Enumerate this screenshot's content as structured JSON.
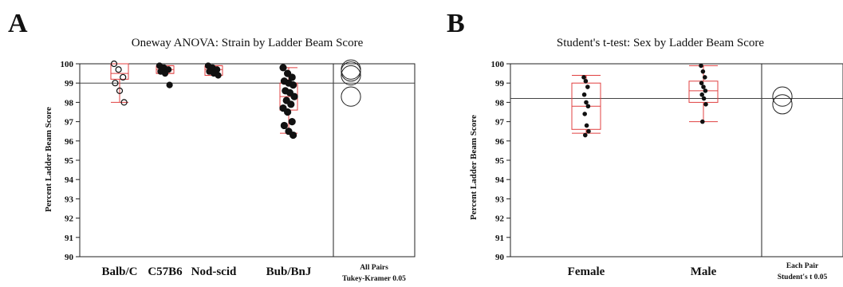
{
  "chart_data": [
    {
      "panel": "A",
      "type": "scatter",
      "title": "Oneway ANOVA: Strain by Ladder Beam Score",
      "ylabel": "Percent Ladder Beam Score",
      "ylim": [
        90,
        100
      ],
      "yticks": [
        "90",
        "91",
        "92",
        "93",
        "94",
        "95",
        "96",
        "97",
        "98",
        "99",
        "100"
      ],
      "grand_mean": 99.0,
      "categories": [
        "Balb/C",
        "C57B6",
        "Nod-scid",
        "Bub/BnJ"
      ],
      "comparison_label": [
        "All Pairs",
        "Tukey-Kramer 0.05"
      ],
      "groups": [
        {
          "name": "Balb/C",
          "box": {
            "q1": 99.2,
            "median": 99.5,
            "q3": 100.0,
            "lo": 98.0,
            "hi": 100.0
          },
          "points": [
            100.0,
            99.7,
            99.3,
            99.0,
            98.6,
            98.0
          ]
        },
        {
          "name": "C57B6",
          "box": {
            "q1": 99.5,
            "median": 99.7,
            "q3": 99.9,
            "lo": 99.5,
            "hi": 99.9
          },
          "points": [
            99.9,
            99.8,
            99.7,
            99.6,
            99.5,
            98.9
          ]
        },
        {
          "name": "Nod-scid",
          "box": {
            "q1": 99.4,
            "median": 99.7,
            "q3": 99.9,
            "lo": 99.4,
            "hi": 99.9
          },
          "points": [
            99.9,
            99.8,
            99.7,
            99.6,
            99.5,
            99.4
          ]
        },
        {
          "name": "Bub/BnJ",
          "box": {
            "q1": 97.6,
            "median": 98.3,
            "q3": 99.0,
            "lo": 96.4,
            "hi": 99.8
          },
          "points": [
            99.8,
            99.5,
            99.3,
            99.1,
            99.0,
            98.9,
            98.6,
            98.5,
            98.3,
            98.1,
            97.9,
            97.7,
            97.5,
            97.0,
            96.8,
            96.5,
            96.3
          ]
        }
      ],
      "comparison_circles": [
        {
          "center": 99.7,
          "radius": 0.5
        },
        {
          "center": 99.6,
          "radius": 0.5
        },
        {
          "center": 99.4,
          "radius": 0.5
        },
        {
          "center": 98.3,
          "radius": 0.5
        }
      ]
    },
    {
      "panel": "B",
      "type": "scatter",
      "title": "Student's t-test: Sex by Ladder Beam Score",
      "ylabel": "Percent Ladder Beam Score",
      "ylim": [
        90,
        100
      ],
      "yticks": [
        "90",
        "91",
        "92",
        "93",
        "94",
        "95",
        "96",
        "97",
        "98",
        "99",
        "100"
      ],
      "grand_mean": 98.2,
      "categories": [
        "Female",
        "Male"
      ],
      "comparison_label": [
        "Each Pair",
        "Student's t 0.05"
      ],
      "groups": [
        {
          "name": "Female",
          "box": {
            "q1": 96.6,
            "median": 97.8,
            "q3": 99.0,
            "lo": 96.4,
            "hi": 99.4
          },
          "points": [
            99.3,
            99.1,
            98.8,
            98.4,
            98.0,
            97.8,
            97.4,
            96.8,
            96.5,
            96.3
          ]
        },
        {
          "name": "Male",
          "box": {
            "q1": 98.0,
            "median": 98.6,
            "q3": 99.1,
            "lo": 97.0,
            "hi": 99.9
          },
          "points": [
            99.9,
            99.6,
            99.3,
            99.0,
            98.8,
            98.6,
            98.4,
            98.2,
            97.9,
            97.0
          ]
        }
      ],
      "comparison_circles": [
        {
          "center": 98.3,
          "radius": 0.5
        },
        {
          "center": 97.9,
          "radius": 0.5
        }
      ]
    }
  ]
}
